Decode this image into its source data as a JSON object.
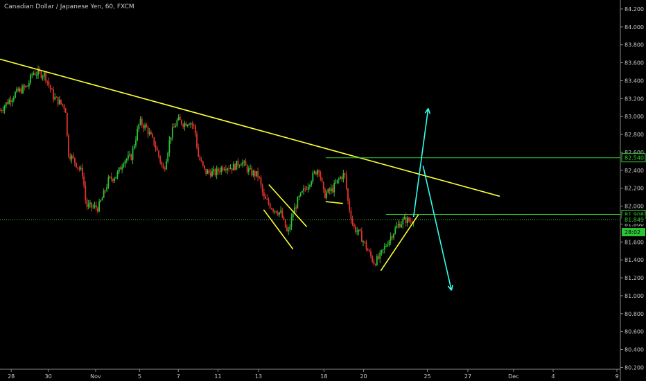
{
  "header": {
    "title": "Canadian Dollar / Japanese Yen, 60, FXCM"
  },
  "colors": {
    "background": "#000000",
    "up": "#2cc336",
    "down": "#e0352b",
    "trendline": "#ffff33",
    "level": "#33cc33",
    "arrow": "#33ffee",
    "axis_text": "#c8c8c8"
  },
  "chart_data": {
    "type": "candlestick",
    "title": "Canadian Dollar / Japanese Yen, 60, FXCM",
    "y_axis": {
      "position": "right",
      "range": [
        80.18,
        84.3
      ],
      "ticks": [
        "84.200",
        "84.000",
        "83.800",
        "83.600",
        "83.400",
        "83.200",
        "83.000",
        "82.800",
        "82.600",
        "82.400",
        "82.200",
        "82.000",
        "81.800",
        "81.600",
        "81.400",
        "81.200",
        "81.000",
        "80.800",
        "80.600",
        "80.400",
        "80.200"
      ]
    },
    "x_axis": {
      "range": [
        -2.5,
        33.5
      ],
      "ticks": [
        {
          "label": "28",
          "t": -1.85
        },
        {
          "label": "30",
          "t": 0.3
        },
        {
          "label": "Nov",
          "t": 3.05
        },
        {
          "label": "5",
          "t": 5.6
        },
        {
          "label": "7",
          "t": 7.85
        },
        {
          "label": "11",
          "t": 10.15
        },
        {
          "label": "13",
          "t": 12.5
        },
        {
          "label": "18",
          "t": 16.3
        },
        {
          "label": "20",
          "t": 18.6
        },
        {
          "label": "25",
          "t": 22.3
        },
        {
          "label": "27",
          "t": 24.65
        },
        {
          "label": "Dec",
          "t": 27.3
        },
        {
          "label": "4",
          "t": 29.6
        },
        {
          "label": "9",
          "t": 33.3
        }
      ]
    },
    "price_path": [
      [
        -2.5,
        83.07
      ],
      [
        -1.6,
        83.26
      ],
      [
        -0.9,
        83.34
      ],
      [
        -0.6,
        83.49
      ],
      [
        0.1,
        83.47
      ],
      [
        0.6,
        83.22
      ],
      [
        1.0,
        83.15
      ],
      [
        1.3,
        83.1
      ],
      [
        1.45,
        82.6
      ],
      [
        1.9,
        82.48
      ],
      [
        2.3,
        82.36
      ],
      [
        2.5,
        82.0
      ],
      [
        2.9,
        81.99
      ],
      [
        3.2,
        81.98
      ],
      [
        3.5,
        82.12
      ],
      [
        3.8,
        82.29
      ],
      [
        4.3,
        82.35
      ],
      [
        4.7,
        82.52
      ],
      [
        5.1,
        82.54
      ],
      [
        5.6,
        82.94
      ],
      [
        6.0,
        82.87
      ],
      [
        6.5,
        82.68
      ],
      [
        7.0,
        82.39
      ],
      [
        7.4,
        82.79
      ],
      [
        7.8,
        82.96
      ],
      [
        8.2,
        82.92
      ],
      [
        8.5,
        82.95
      ],
      [
        8.8,
        82.87
      ],
      [
        9.0,
        82.56
      ],
      [
        9.4,
        82.38
      ],
      [
        10.0,
        82.37
      ],
      [
        10.5,
        82.45
      ],
      [
        11.0,
        82.43
      ],
      [
        11.5,
        82.5
      ],
      [
        12.0,
        82.38
      ],
      [
        12.5,
        82.34
      ],
      [
        12.8,
        82.09
      ],
      [
        13.3,
        81.98
      ],
      [
        13.8,
        81.92
      ],
      [
        14.2,
        81.68
      ],
      [
        14.5,
        81.92
      ],
      [
        14.8,
        82.07
      ],
      [
        15.3,
        82.22
      ],
      [
        15.7,
        82.35
      ],
      [
        16.0,
        82.43
      ],
      [
        16.3,
        82.12
      ],
      [
        16.8,
        82.19
      ],
      [
        17.2,
        82.31
      ],
      [
        17.5,
        82.36
      ],
      [
        17.7,
        82.04
      ],
      [
        18.0,
        81.77
      ],
      [
        18.4,
        81.68
      ],
      [
        18.8,
        81.52
      ],
      [
        19.2,
        81.37
      ],
      [
        19.5,
        81.42
      ],
      [
        19.8,
        81.53
      ],
      [
        20.2,
        81.67
      ],
      [
        20.6,
        81.79
      ],
      [
        21.0,
        81.85
      ],
      [
        21.3,
        81.83
      ],
      [
        21.5,
        81.86
      ]
    ],
    "annotations": [
      {
        "type": "trendline",
        "color": "yellow",
        "from": [
          -2.5,
          83.64
        ],
        "to": [
          26.5,
          82.11
        ]
      },
      {
        "type": "trendline",
        "color": "yellow",
        "from": [
          12.8,
          81.96
        ],
        "to": [
          14.5,
          81.52
        ]
      },
      {
        "type": "trendline",
        "color": "yellow",
        "from": [
          13.1,
          82.24
        ],
        "to": [
          15.3,
          81.77
        ]
      },
      {
        "type": "trendline",
        "color": "yellow",
        "from": [
          16.4,
          82.05
        ],
        "to": [
          17.4,
          82.03
        ]
      },
      {
        "type": "trendline",
        "color": "yellow",
        "from": [
          19.6,
          81.28
        ],
        "to": [
          21.8,
          81.91
        ]
      },
      {
        "type": "hline",
        "color": "green",
        "price": 82.54,
        "from_t": 16.4
      },
      {
        "type": "hline",
        "color": "green",
        "price": 81.908,
        "from_t": 19.9
      },
      {
        "type": "hline",
        "color": "green",
        "style": "dotted",
        "price": 81.849,
        "from_t": -2.5
      },
      {
        "type": "arrow",
        "color": "cyan",
        "points": [
          [
            21.5,
            81.88
          ],
          [
            21.9,
            82.45
          ],
          [
            22.35,
            83.09
          ]
        ]
      },
      {
        "type": "arrow",
        "color": "cyan",
        "points": [
          [
            22.05,
            82.45
          ],
          [
            23.7,
            81.06
          ]
        ]
      }
    ],
    "price_labels": [
      {
        "text": "82.540",
        "price": 82.54,
        "kind": "outline"
      },
      {
        "text": "81.908",
        "price": 81.908,
        "kind": "outline"
      },
      {
        "text": "81.849",
        "price": 81.849,
        "kind": "plain"
      },
      {
        "text": "28:02",
        "price": 81.71,
        "kind": "filled"
      }
    ]
  }
}
